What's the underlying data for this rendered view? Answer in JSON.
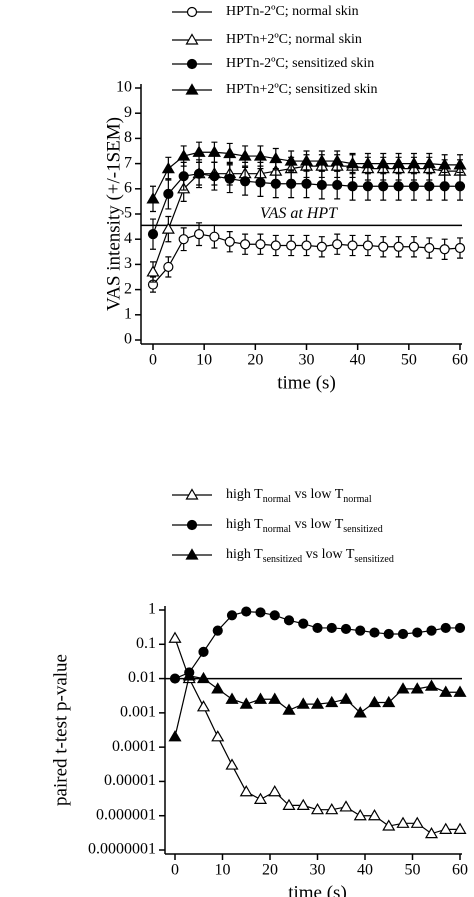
{
  "chart_data": [
    {
      "type": "line",
      "ylabel": "VAS intensity (+/-1SEM)",
      "xlabel": "time (s)",
      "x": [
        0,
        3,
        6,
        9,
        12,
        15,
        18,
        21,
        24,
        27,
        30,
        33,
        36,
        39,
        42,
        45,
        48,
        51,
        54,
        57,
        60
      ],
      "xlim": [
        0,
        60
      ],
      "xticks": [
        0,
        10,
        20,
        30,
        40,
        50,
        60
      ],
      "ylim": [
        0,
        10
      ],
      "yticks": [
        0,
        1,
        2,
        3,
        4,
        5,
        6,
        7,
        8,
        9,
        10
      ],
      "log_y": false,
      "reference": {
        "value": 4.55,
        "label": "VAS at HPT"
      },
      "series": [
        {
          "name": "HPTn-2ºC; normal skin",
          "color": "#000",
          "marker": "circle",
          "filled": false,
          "values": [
            2.2,
            2.9,
            4.0,
            4.2,
            4.1,
            3.9,
            3.8,
            3.8,
            3.75,
            3.75,
            3.75,
            3.7,
            3.8,
            3.75,
            3.75,
            3.7,
            3.7,
            3.7,
            3.65,
            3.6,
            3.65
          ],
          "errors": [
            0.3,
            0.4,
            0.45,
            0.45,
            0.45,
            0.4,
            0.4,
            0.4,
            0.4,
            0.4,
            0.4,
            0.4,
            0.4,
            0.4,
            0.4,
            0.4,
            0.4,
            0.4,
            0.4,
            0.4,
            0.4
          ]
        },
        {
          "name": "HPTn+2ºC; normal skin",
          "color": "#000",
          "marker": "triangle",
          "filled": false,
          "values": [
            2.7,
            4.4,
            6.0,
            6.6,
            6.6,
            6.6,
            6.6,
            6.6,
            6.7,
            6.8,
            6.9,
            6.9,
            6.9,
            6.9,
            6.8,
            6.8,
            6.8,
            6.8,
            6.8,
            6.7,
            6.7
          ],
          "errors": [
            0.4,
            0.5,
            0.5,
            0.45,
            0.45,
            0.45,
            0.45,
            0.45,
            0.45,
            0.45,
            0.45,
            0.45,
            0.45,
            0.45,
            0.45,
            0.45,
            0.45,
            0.45,
            0.45,
            0.45,
            0.45
          ]
        },
        {
          "name": "HPTn-2ºC; sensitized skin",
          "color": "#000",
          "marker": "circle",
          "filled": true,
          "values": [
            4.2,
            5.8,
            6.5,
            6.6,
            6.5,
            6.4,
            6.3,
            6.25,
            6.2,
            6.2,
            6.2,
            6.15,
            6.15,
            6.1,
            6.1,
            6.1,
            6.1,
            6.1,
            6.1,
            6.1,
            6.1
          ],
          "errors": [
            0.6,
            0.6,
            0.55,
            0.55,
            0.55,
            0.55,
            0.55,
            0.55,
            0.55,
            0.55,
            0.55,
            0.55,
            0.55,
            0.55,
            0.55,
            0.55,
            0.55,
            0.55,
            0.55,
            0.55,
            0.55
          ]
        },
        {
          "name": "HPTn+2ºC; sensitized skin",
          "color": "#000",
          "marker": "triangle",
          "filled": true,
          "values": [
            5.6,
            6.8,
            7.3,
            7.45,
            7.45,
            7.4,
            7.3,
            7.3,
            7.2,
            7.1,
            7.1,
            7.1,
            7.1,
            7.0,
            7.0,
            7.0,
            7.0,
            7.0,
            7.0,
            6.95,
            6.95
          ],
          "errors": [
            0.5,
            0.45,
            0.4,
            0.4,
            0.4,
            0.4,
            0.4,
            0.4,
            0.4,
            0.4,
            0.4,
            0.4,
            0.4,
            0.4,
            0.4,
            0.4,
            0.4,
            0.4,
            0.4,
            0.4,
            0.4
          ]
        }
      ]
    },
    {
      "type": "line",
      "ylabel": "paired t-test p-value",
      "xlabel": "time (s)",
      "x": [
        0,
        3,
        6,
        9,
        12,
        15,
        18,
        21,
        24,
        27,
        30,
        33,
        36,
        39,
        42,
        45,
        48,
        51,
        54,
        57,
        60
      ],
      "xlim": [
        0,
        60
      ],
      "xticks": [
        0,
        10,
        20,
        30,
        40,
        50,
        60
      ],
      "ylim": [
        {
          "value": 1e-07,
          "label": "0.0000001"
        },
        1
      ],
      "log_y": true,
      "yticks": [
        1,
        0.1,
        0.01,
        0.001,
        0.0001,
        1e-05,
        1e-06,
        {
          "value": 1e-07,
          "label": "0.0000001"
        }
      ],
      "reference": {
        "value": 0.01
      },
      "series": [
        {
          "name": [
            "high T",
            "normal",
            " vs low T",
            "normal"
          ],
          "color": "#000",
          "marker": "triangle",
          "filled": false,
          "values": [
            0.15,
            0.01,
            0.0015,
            0.0002,
            3e-05,
            5e-06,
            3e-06,
            5e-06,
            2e-06,
            2e-06,
            1.5e-06,
            1.5e-06,
            1.8e-06,
            1e-06,
            1e-06,
            5e-07,
            6e-07,
            6e-07,
            3e-07,
            4e-07,
            4e-07
          ]
        },
        {
          "name": [
            "high T",
            "normal",
            " vs low T",
            "sensitized"
          ],
          "color": "#000",
          "marker": "circle",
          "filled": true,
          "values": [
            0.01,
            0.015,
            0.06,
            0.25,
            0.7,
            0.9,
            0.85,
            0.7,
            0.5,
            0.4,
            0.3,
            0.3,
            0.28,
            0.25,
            0.22,
            0.2,
            0.2,
            0.22,
            0.25,
            0.3,
            0.3
          ]
        },
        {
          "name": [
            "high T",
            "sensitized",
            " vs low T",
            "sensitized"
          ],
          "color": "#000",
          "marker": "triangle",
          "filled": true,
          "values": [
            0.0002,
            0.012,
            0.01,
            0.005,
            0.0025,
            0.0018,
            0.0025,
            0.0025,
            0.0012,
            0.0018,
            0.0018,
            0.002,
            0.0025,
            0.001,
            0.002,
            0.002,
            0.005,
            0.005,
            0.006,
            0.004,
            0.004
          ]
        }
      ]
    }
  ]
}
